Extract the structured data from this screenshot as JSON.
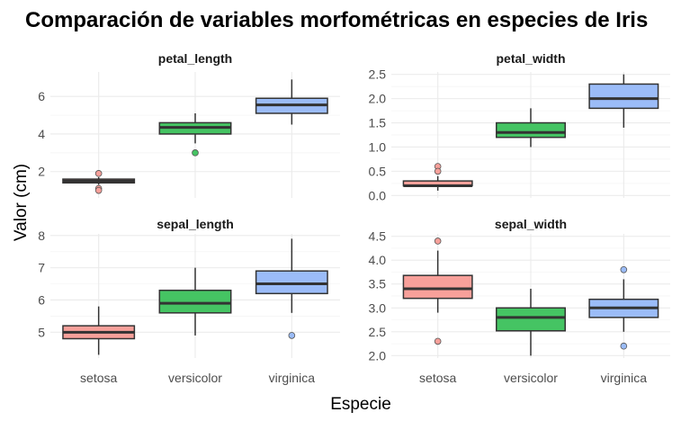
{
  "chart_data": {
    "type": "boxplot",
    "title": "Comparación de variables morfométricas en especies de Iris",
    "xlabel": "Especie",
    "ylabel": "Valor (cm)",
    "categories": [
      "setosa",
      "versicolor",
      "virginica"
    ],
    "colors": {
      "setosa": "#f8a09a",
      "versicolor": "#45c463",
      "virginica": "#9bbcf8"
    },
    "grid": true,
    "facets": [
      {
        "name": "petal_length",
        "ylim": [
          0.6,
          7.3
        ],
        "yticks": [
          2,
          4,
          6
        ],
        "tick_labels": [
          "2",
          "4",
          "6"
        ],
        "boxes": [
          {
            "category": "setosa",
            "min": 1.3,
            "q1": 1.4,
            "median": 1.5,
            "q3": 1.6,
            "max": 1.7,
            "outliers": [
              1.9,
              1.1,
              1.0
            ]
          },
          {
            "category": "versicolor",
            "min": 3.5,
            "q1": 4.0,
            "median": 4.35,
            "q3": 4.6,
            "max": 5.1,
            "outliers": [
              3.0
            ]
          },
          {
            "category": "virginica",
            "min": 4.5,
            "q1": 5.1,
            "median": 5.55,
            "q3": 5.9,
            "max": 6.9,
            "outliers": []
          }
        ]
      },
      {
        "name": "petal_width",
        "ylim": [
          -0.05,
          2.55
        ],
        "yticks": [
          0.0,
          0.5,
          1.0,
          1.5,
          2.0,
          2.5
        ],
        "tick_labels": [
          "0.0",
          "0.5",
          "1.0",
          "1.5",
          "2.0",
          "2.5"
        ],
        "boxes": [
          {
            "category": "setosa",
            "min": 0.1,
            "q1": 0.2,
            "median": 0.2,
            "q3": 0.3,
            "max": 0.4,
            "outliers": [
              0.6,
              0.5
            ]
          },
          {
            "category": "versicolor",
            "min": 1.0,
            "q1": 1.2,
            "median": 1.3,
            "q3": 1.5,
            "max": 1.8,
            "outliers": []
          },
          {
            "category": "virginica",
            "min": 1.4,
            "q1": 1.8,
            "median": 2.0,
            "q3": 2.3,
            "max": 2.5,
            "outliers": []
          }
        ]
      },
      {
        "name": "sepal_length",
        "ylim": [
          4.2,
          8.05
        ],
        "yticks": [
          5,
          6,
          7,
          8
        ],
        "tick_labels": [
          "5",
          "6",
          "7",
          "8"
        ],
        "boxes": [
          {
            "category": "setosa",
            "min": 4.3,
            "q1": 4.8,
            "median": 5.0,
            "q3": 5.2,
            "max": 5.8,
            "outliers": []
          },
          {
            "category": "versicolor",
            "min": 4.9,
            "q1": 5.6,
            "median": 5.9,
            "q3": 6.3,
            "max": 7.0,
            "outliers": []
          },
          {
            "category": "virginica",
            "min": 5.6,
            "q1": 6.2,
            "median": 6.5,
            "q3": 6.9,
            "max": 7.9,
            "outliers": [
              4.9
            ]
          }
        ]
      },
      {
        "name": "sepal_width",
        "ylim": [
          1.95,
          4.55
        ],
        "yticks": [
          2.0,
          2.5,
          3.0,
          3.5,
          4.0,
          4.5
        ],
        "tick_labels": [
          "2.0",
          "2.5",
          "3.0",
          "3.5",
          "4.0",
          "4.5"
        ],
        "boxes": [
          {
            "category": "setosa",
            "min": 2.9,
            "q1": 3.2,
            "median": 3.4,
            "q3": 3.68,
            "max": 4.2,
            "outliers": [
              4.4,
              2.3
            ]
          },
          {
            "category": "versicolor",
            "min": 2.0,
            "q1": 2.52,
            "median": 2.8,
            "q3": 3.0,
            "max": 3.4,
            "outliers": []
          },
          {
            "category": "virginica",
            "min": 2.5,
            "q1": 2.8,
            "median": 3.0,
            "q3": 3.18,
            "max": 3.6,
            "outliers": [
              3.8,
              2.2
            ]
          }
        ]
      }
    ]
  }
}
